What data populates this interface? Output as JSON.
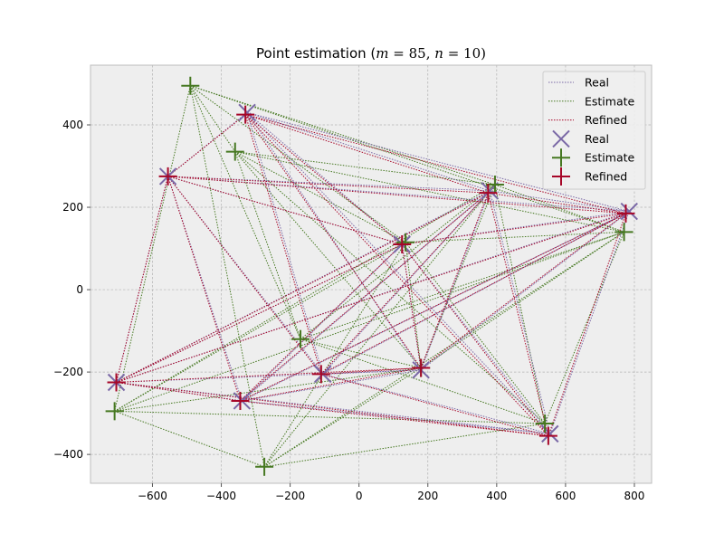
{
  "chart_data": {
    "type": "scatter",
    "title": "Point estimation (m = 85, n = 10)",
    "title_parts": {
      "text": "Point estimation (",
      "m_var": "m",
      "m_eq": " = 85, ",
      "n_var": "n",
      "n_eq": " = 10)"
    },
    "xlabel": "",
    "ylabel": "",
    "xlim": [
      -780,
      850
    ],
    "ylim": [
      -470,
      545
    ],
    "xticks": [
      -600,
      -400,
      -200,
      0,
      200,
      400,
      600,
      800
    ],
    "yticks": [
      -400,
      -200,
      0,
      200,
      400
    ],
    "grid": true,
    "legend_position": "top-right",
    "colors": {
      "real": "#7a68a6",
      "estimate": "#467821",
      "refined": "#a60628",
      "axes_bg": "#eeeeee",
      "grid": "#b2b2b2",
      "spine": "#bcbcbc"
    },
    "legend": [
      {
        "label": "Real",
        "kind": "line",
        "series": "real"
      },
      {
        "label": "Estimate",
        "kind": "line",
        "series": "estimate"
      },
      {
        "label": "Refined",
        "kind": "line",
        "series": "refined"
      },
      {
        "label": "Real",
        "kind": "marker",
        "series": "real"
      },
      {
        "label": "Estimate",
        "kind": "marker",
        "series": "estimate"
      },
      {
        "label": "Refined",
        "kind": "marker",
        "series": "refined"
      }
    ],
    "series": [
      {
        "name": "Real",
        "key": "real",
        "marker": "x",
        "points": [
          [
            -555,
            275
          ],
          [
            -325,
            430
          ],
          [
            -705,
            -225
          ],
          [
            -340,
            -270
          ],
          [
            -105,
            -205
          ],
          [
            125,
            110
          ],
          [
            180,
            -195
          ],
          [
            380,
            240
          ],
          [
            555,
            -350
          ],
          [
            785,
            190
          ]
        ]
      },
      {
        "name": "Estimate",
        "key": "estimate",
        "marker": "+",
        "points": [
          [
            -490,
            495
          ],
          [
            -360,
            335
          ],
          [
            -710,
            -295
          ],
          [
            -275,
            -430
          ],
          [
            -170,
            -120
          ],
          [
            135,
            115
          ],
          [
            180,
            -190
          ],
          [
            395,
            255
          ],
          [
            540,
            -325
          ],
          [
            770,
            140
          ]
        ]
      },
      {
        "name": "Refined",
        "key": "refined",
        "marker": "+",
        "points": [
          [
            -555,
            275
          ],
          [
            -330,
            425
          ],
          [
            -705,
            -225
          ],
          [
            -345,
            -270
          ],
          [
            -110,
            -205
          ],
          [
            125,
            110
          ],
          [
            180,
            -190
          ],
          [
            375,
            235
          ],
          [
            550,
            -355
          ],
          [
            775,
            185
          ]
        ]
      }
    ],
    "edges": [
      [
        0,
        1
      ],
      [
        0,
        5
      ],
      [
        0,
        7
      ],
      [
        0,
        9
      ],
      [
        0,
        2
      ],
      [
        0,
        3
      ],
      [
        0,
        4
      ],
      [
        1,
        9
      ],
      [
        1,
        6
      ],
      [
        1,
        7
      ],
      [
        1,
        4
      ],
      [
        1,
        5
      ],
      [
        1,
        8
      ],
      [
        2,
        3
      ],
      [
        2,
        5
      ],
      [
        2,
        7
      ],
      [
        2,
        9
      ],
      [
        2,
        6
      ],
      [
        2,
        8
      ],
      [
        3,
        6
      ],
      [
        3,
        7
      ],
      [
        3,
        9
      ],
      [
        3,
        8
      ],
      [
        3,
        5
      ],
      [
        4,
        6
      ],
      [
        4,
        7
      ],
      [
        4,
        9
      ],
      [
        4,
        8
      ],
      [
        5,
        8
      ],
      [
        5,
        6
      ],
      [
        5,
        9
      ],
      [
        6,
        7
      ],
      [
        6,
        9
      ],
      [
        7,
        8
      ],
      [
        7,
        9
      ],
      [
        8,
        9
      ]
    ]
  }
}
